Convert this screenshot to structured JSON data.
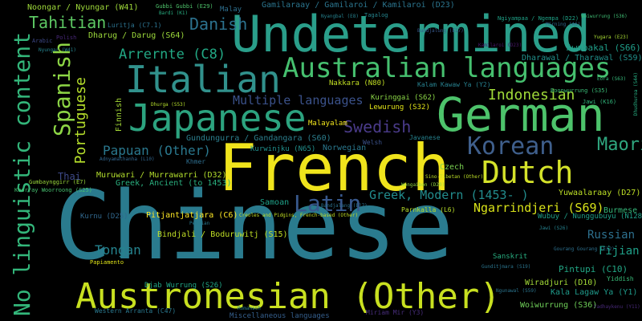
{
  "words": [
    {
      "text": "Chinese",
      "color": "#2a7b8e"
    },
    {
      "text": "French",
      "color": "#f0e41c"
    },
    {
      "text": "Undetermined",
      "color": "#2a9e8a"
    },
    {
      "text": "German",
      "color": "#4dc36b"
    },
    {
      "text": "Austronesian (Other)",
      "color": "#c8e020"
    },
    {
      "text": "Japanese",
      "color": "#2ca37f"
    },
    {
      "text": "Italian",
      "color": "#31918c"
    },
    {
      "text": "Australian languages",
      "color": "#46c06f"
    },
    {
      "text": "Dutch",
      "color": "#d4e22a"
    },
    {
      "text": "No linguistic content",
      "color": "#33b67a"
    },
    {
      "text": "Korean",
      "color": "#3f5f8c"
    },
    {
      "text": "Spanish",
      "color": "#8dd645"
    },
    {
      "text": "Latin",
      "color": "#38588c"
    },
    {
      "text": "Swedish",
      "color": "#4a3b8a"
    },
    {
      "text": "Portuguese",
      "color": "#b5de2b"
    },
    {
      "text": "Tahitian",
      "color": "#5dc863"
    },
    {
      "text": "Danish",
      "color": "#2c728e"
    },
    {
      "text": "Indonesian",
      "color": "#a0da39"
    },
    {
      "text": "Maori",
      "color": "#2fa67f"
    },
    {
      "text": "Arrernte (C8)",
      "color": "#22a884"
    },
    {
      "text": "Multiple languages",
      "color": "#3b528b"
    },
    {
      "text": "Papuan (Other)",
      "color": "#2a788e"
    },
    {
      "text": "Greek, Modern (1453- )",
      "color": "#228c8d"
    },
    {
      "text": "Ngarrindjeri (S69)",
      "color": "#d8e219"
    },
    {
      "text": "Russian",
      "color": "#2d708e"
    },
    {
      "text": "Tongan",
      "color": "#25838e"
    },
    {
      "text": "Fijian",
      "color": "#1fa088"
    },
    {
      "text": "Gundungurra / Gandangara (S60)",
      "color": "#2c7f8e"
    },
    {
      "text": "Noongar / Nyungar (W41)",
      "color": "#9fda3a"
    },
    {
      "text": "Gamilaraay / Gamilaroi / Kamilaroi (D23)",
      "color": "#2b758e"
    },
    {
      "text": "Dharug / Darug (S64)",
      "color": "#9cd93b"
    },
    {
      "text": "Awabakal (S66)",
      "color": "#1f9e89"
    },
    {
      "text": "Dharawal / Tharawal (S59)",
      "color": "#21918c"
    },
    {
      "text": "Wiradjuri (D10)",
      "color": "#a2da37"
    },
    {
      "text": "Woiwurrung (S36)",
      "color": "#6ece58"
    },
    {
      "text": "Kala Lagaw Ya (Y1)",
      "color": "#1f9a8a"
    },
    {
      "text": "Pintupi (C10)",
      "color": "#22a785"
    },
    {
      "text": "Yuwaalaraay (D27)",
      "color": "#bddf26"
    },
    {
      "text": "Burmese",
      "color": "#35b779"
    },
    {
      "text": "Thai",
      "color": "#3e4a89"
    },
    {
      "text": "Samoan",
      "color": "#1fa188"
    },
    {
      "text": "Czech",
      "color": "#7ad151"
    },
    {
      "text": "Norwegian",
      "color": "#2a788e"
    },
    {
      "text": "Javanese",
      "color": "#26828e"
    },
    {
      "text": "Welsh",
      "color": "#3b528b"
    },
    {
      "text": "Lewurung (S32)",
      "color": "#e2e418"
    },
    {
      "text": "Pitjantjatjara (C6)",
      "color": "#fde725"
    },
    {
      "text": "Muruwari / Murrawarri (D32)",
      "color": "#b2dd2d"
    },
    {
      "text": "Greek, Ancient (to 1453)",
      "color": "#2ab07f"
    },
    {
      "text": "Bindjali / Boduruwitj (S15)",
      "color": "#c0df25"
    },
    {
      "text": "Kurnu (D25)",
      "color": "#31688e"
    },
    {
      "text": "Malayalam",
      "color": "#f1e51d"
    },
    {
      "text": "Kuringgai (S62)",
      "color": "#8bd646"
    },
    {
      "text": "Kurwinjku (N65)",
      "color": "#21908d"
    },
    {
      "text": "Nakkara (N80)",
      "color": "#c2df23"
    },
    {
      "text": "Kalam Kawaw Ya (Y2)",
      "color": "#27808e"
    },
    {
      "text": "Djab Wurrung (S26)",
      "color": "#21a585"
    },
    {
      "text": "Wubuy / Nunggubuyu (N128)",
      "color": "#1f9f88"
    },
    {
      "text": "Sanskrit",
      "color": "#28ae80"
    },
    {
      "text": "Malay",
      "color": "#2e6f8e"
    },
    {
      "text": "Finnish",
      "color": "#a5db36"
    },
    {
      "text": "Khmer",
      "color": "#2e6e8e"
    },
    {
      "text": "Luritja (C7.1)",
      "color": "#2c728e"
    },
    {
      "text": "Parnkalla (L6)",
      "color": "#b8de29"
    },
    {
      "text": "Gumbaynggirr (E7)",
      "color": "#9bd93c"
    },
    {
      "text": "Gubbi Gubbi (E29)",
      "color": "#4ec36b"
    },
    {
      "text": "Miriam Mir (Y3)",
      "color": "#472d7b"
    },
    {
      "text": "Miscellaneous languages",
      "color": "#355f8d"
    },
    {
      "text": "Western Arranta (C47)",
      "color": "#2a788e"
    },
    {
      "text": "Yiddish",
      "color": "#38b977"
    },
    {
      "text": "Tagalog",
      "color": "#25858e"
    },
    {
      "text": "Boonwurrung (S35)",
      "color": "#3aba76"
    },
    {
      "text": "Ngiyampaa / Ngempa (D22)",
      "color": "#1fa287"
    },
    {
      "text": "Jawi (S26)",
      "color": "#26828e"
    },
    {
      "text": "Jawi (K16)",
      "color": "#31b57b"
    },
    {
      "text": "Bundjalung (E17)",
      "color": "#38598c"
    },
    {
      "text": "Wongaibon (D20)",
      "color": "#93d741"
    },
    {
      "text": "Kamilaroi (D23)",
      "color": "#48186a"
    },
    {
      "text": "Woiwurrung (S36)",
      "color": "#3fbc73"
    },
    {
      "text": "Gourang Gourang (E32)",
      "color": "#2d708e"
    },
    {
      "text": "Ngunawal (S59)",
      "color": "#2b758e"
    },
    {
      "text": "Koorray Woorroong (S25)",
      "color": "#46c06f"
    },
    {
      "text": "Adnyamathanha (L10)",
      "color": "#31668e"
    },
    {
      "text": "Bandjalang (E17)",
      "color": "#2c728e"
    },
    {
      "text": "Arabic",
      "color": "#3e4989"
    },
    {
      "text": "Polish",
      "color": "#482878"
    },
    {
      "text": "Bardi (K1)",
      "color": "#28ae80"
    },
    {
      "text": "Persian",
      "color": "#2a788e"
    },
    {
      "text": "Papiamento",
      "color": "#dfe318"
    },
    {
      "text": "Dhurga (S53)",
      "color": "#b5de2b"
    },
    {
      "text": "Yugara (E23)",
      "color": "#a8db34"
    },
    {
      "text": "Nyungar (W41)",
      "color": "#25848e"
    },
    {
      "text": "Creoles and Pidgins, French-based (Other)",
      "color": "#c2df23"
    },
    {
      "text": "Sino-Tibetan (Other)",
      "color": "#bddf26"
    },
    {
      "text": "Romansch",
      "color": "#277f8e"
    },
    {
      "text": "Gunditjmara (S19)",
      "color": "#2b758e"
    },
    {
      "text": "Eora (S63)",
      "color": "#35b779"
    },
    {
      "text": "Mirning (A6)",
      "color": "#31688e"
    },
    {
      "text": "Dhudhuroa (S44)",
      "color": "#27ad81"
    },
    {
      "text": "Yadhaykenu (Y11)",
      "color": "#482979"
    },
    {
      "text": "Nyangbal (E8)",
      "color": "#26828e"
    }
  ]
}
